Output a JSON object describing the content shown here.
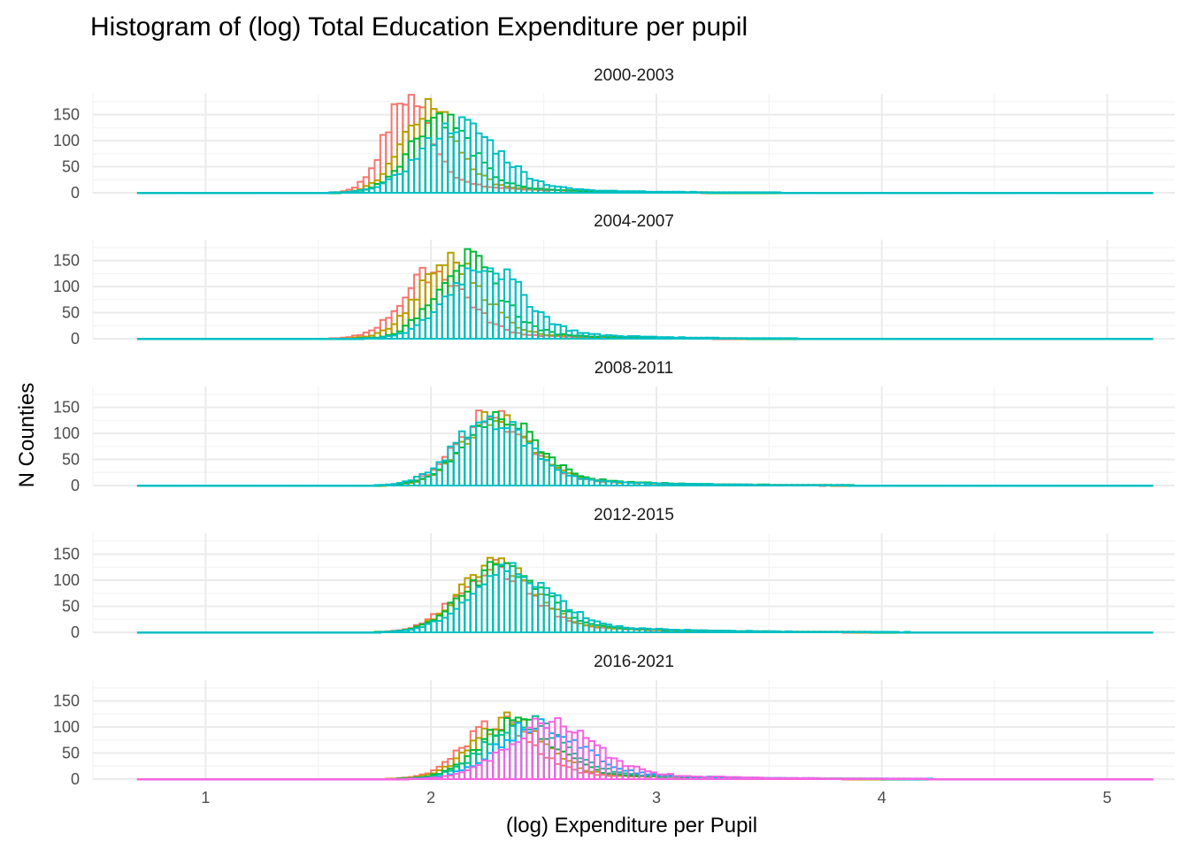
{
  "chart_data": {
    "type": "histogram",
    "title": "Histogram of (log) Total Education Expenditure per pupil",
    "xlabel": "(log) Expenditure per Pupil",
    "ylabel": "N Counties",
    "xlim": [
      0.5,
      5.3
    ],
    "ylim": [
      0,
      190
    ],
    "x_ticks": [
      "1",
      "2",
      "3",
      "4",
      "5"
    ],
    "x_tick_values": [
      1,
      2,
      3,
      4,
      5
    ],
    "y_ticks": [
      "0",
      "50",
      "100",
      "150"
    ],
    "y_tick_values": [
      0,
      50,
      100,
      150
    ],
    "bin_range": [
      0.7,
      5.2
    ],
    "bin_width": 0.025,
    "grid": true,
    "legend": "none",
    "panels": [
      {
        "label": "2000-2003",
        "series": [
          {
            "color": "#F8766D",
            "mean": 1.9,
            "sd": 0.1,
            "peak": 185,
            "tail": 0.3
          },
          {
            "color": "#B79F00",
            "mean": 1.99,
            "sd": 0.12,
            "peak": 168,
            "tail": 0.3
          },
          {
            "color": "#00BA38",
            "mean": 2.04,
            "sd": 0.13,
            "peak": 150,
            "tail": 0.3
          },
          {
            "color": "#00BFC4",
            "mean": 2.13,
            "sd": 0.17,
            "peak": 132,
            "tail": 0.35
          }
        ]
      },
      {
        "label": "2004-2007",
        "series": [
          {
            "color": "#F8766D",
            "mean": 2.02,
            "sd": 0.14,
            "peak": 130,
            "tail": 0.3
          },
          {
            "color": "#B79F00",
            "mean": 2.09,
            "sd": 0.14,
            "peak": 150,
            "tail": 0.3
          },
          {
            "color": "#00BA38",
            "mean": 2.16,
            "sd": 0.14,
            "peak": 152,
            "tail": 0.3
          },
          {
            "color": "#00BFC4",
            "mean": 2.24,
            "sd": 0.16,
            "peak": 145,
            "tail": 0.35
          }
        ]
      },
      {
        "label": "2008-2011",
        "series": [
          {
            "color": "#F8766D",
            "mean": 2.27,
            "sd": 0.15,
            "peak": 135,
            "tail": 0.38
          },
          {
            "color": "#B79F00",
            "mean": 2.29,
            "sd": 0.15,
            "peak": 132,
            "tail": 0.38
          },
          {
            "color": "#00BA38",
            "mean": 2.31,
            "sd": 0.16,
            "peak": 130,
            "tail": 0.4
          },
          {
            "color": "#00BFC4",
            "mean": 2.27,
            "sd": 0.16,
            "peak": 128,
            "tail": 0.4
          }
        ]
      },
      {
        "label": "2012-2015",
        "series": [
          {
            "color": "#F8766D",
            "mean": 2.28,
            "sd": 0.16,
            "peak": 125,
            "tail": 0.4
          },
          {
            "color": "#B79F00",
            "mean": 2.3,
            "sd": 0.16,
            "peak": 135,
            "tail": 0.4
          },
          {
            "color": "#00BA38",
            "mean": 2.32,
            "sd": 0.17,
            "peak": 128,
            "tail": 0.42
          },
          {
            "color": "#00BFC4",
            "mean": 2.36,
            "sd": 0.18,
            "peak": 120,
            "tail": 0.45
          }
        ]
      },
      {
        "label": "2016-2021",
        "series": [
          {
            "color": "#F8766D",
            "mean": 2.3,
            "sd": 0.15,
            "peak": 112,
            "tail": 0.4
          },
          {
            "color": "#B79F00",
            "mean": 2.35,
            "sd": 0.16,
            "peak": 112,
            "tail": 0.4
          },
          {
            "color": "#00BA38",
            "mean": 2.38,
            "sd": 0.16,
            "peak": 112,
            "tail": 0.42
          },
          {
            "color": "#00C08B",
            "mean": 2.42,
            "sd": 0.17,
            "peak": 110,
            "tail": 0.42
          },
          {
            "color": "#00B4F0",
            "mean": 2.48,
            "sd": 0.18,
            "peak": 108,
            "tail": 0.45
          },
          {
            "color": "#F564E3",
            "mean": 2.53,
            "sd": 0.19,
            "peak": 108,
            "tail": 0.45
          }
        ]
      }
    ]
  }
}
